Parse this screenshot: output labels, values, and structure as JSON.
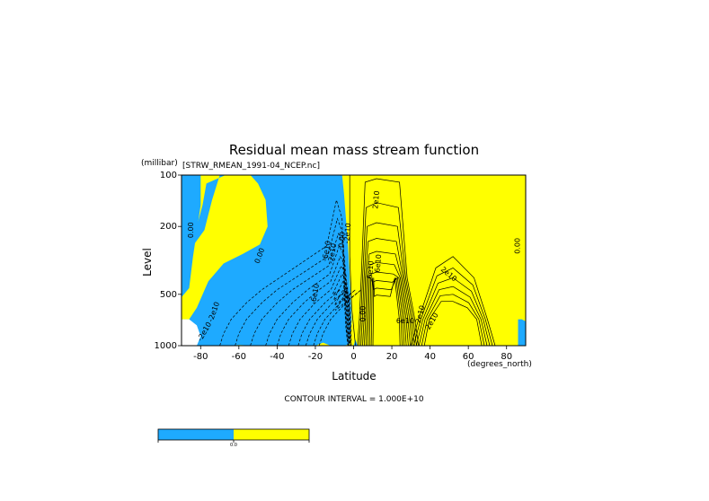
{
  "chart_data": {
    "type": "contour",
    "title": "Residual mean mass stream function",
    "dataset": "[STRW_RMEAN_1991-04_NCEP.nc]",
    "ylabel": "Level",
    "yunits": "(millibar)",
    "xlabel": "Latitude",
    "xunits": "(degrees_north)",
    "xlim": [
      -90,
      90
    ],
    "ylim": [
      1000,
      100
    ],
    "yscale": "log",
    "x_ticks": [
      {
        "value": -80,
        "label": "-80"
      },
      {
        "value": -60,
        "label": "-60"
      },
      {
        "value": -40,
        "label": "-40"
      },
      {
        "value": -20,
        "label": "-20"
      },
      {
        "value": 0,
        "label": "0"
      },
      {
        "value": 20,
        "label": "20"
      },
      {
        "value": 40,
        "label": "40"
      },
      {
        "value": 60,
        "label": "60"
      },
      {
        "value": 80,
        "label": "80"
      }
    ],
    "y_ticks": [
      {
        "value": 100,
        "label": "100"
      },
      {
        "value": 200,
        "label": "200"
      },
      {
        "value": 500,
        "label": "500"
      },
      {
        "value": 1000,
        "label": "1000"
      }
    ],
    "contour_interval": "CONTOUR INTERVAL = 1.000E+10",
    "contour_labels": [
      {
        "text": "0.00",
        "lat": -84,
        "p": 210,
        "rot": 90
      },
      {
        "text": "0.00",
        "lat": -48,
        "p": 300,
        "rot": 70
      },
      {
        "text": "-6e10",
        "lat": -19,
        "p": 500,
        "rot": 80
      },
      {
        "text": "-6e10",
        "lat": -13,
        "p": 280,
        "rot": 80
      },
      {
        "text": "-2e10",
        "lat": -72,
        "p": 640,
        "rot": 70
      },
      {
        "text": "-2e10",
        "lat": -77,
        "p": 840,
        "rot": 60
      },
      {
        "text": "-2e10",
        "lat": -10,
        "p": 290,
        "rot": 80
      },
      {
        "text": "0.00",
        "lat": -5,
        "p": 240,
        "rot": 85
      },
      {
        "text": "-2e10",
        "lat": -2,
        "p": 220,
        "rot": 85
      },
      {
        "text": "0.00",
        "lat": 6,
        "p": 650,
        "rot": 90
      },
      {
        "text": "2e10",
        "lat": 13,
        "p": 140,
        "rot": 85
      },
      {
        "text": "6e10",
        "lat": 10,
        "p": 360,
        "rot": 85
      },
      {
        "text": "6e10",
        "lat": 14,
        "p": 330,
        "rot": 85
      },
      {
        "text": "6e10",
        "lat": 27,
        "p": 740,
        "rot": 0
      },
      {
        "text": "2e10",
        "lat": 36,
        "p": 660,
        "rot": 75
      },
      {
        "text": "2e10",
        "lat": 42,
        "p": 730,
        "rot": 60
      },
      {
        "text": "2e10",
        "lat": 49,
        "p": 390,
        "rot": -40
      },
      {
        "text": "0.00",
        "lat": 87,
        "p": 260,
        "rot": 90
      }
    ],
    "colorbar": {
      "label": "0.0",
      "colors": [
        "#1eaaff",
        "#ffff00"
      ]
    },
    "fill_colors": {
      "negative": "#1eaaff",
      "positive": "#ffff00",
      "background": "#ffffff"
    }
  }
}
